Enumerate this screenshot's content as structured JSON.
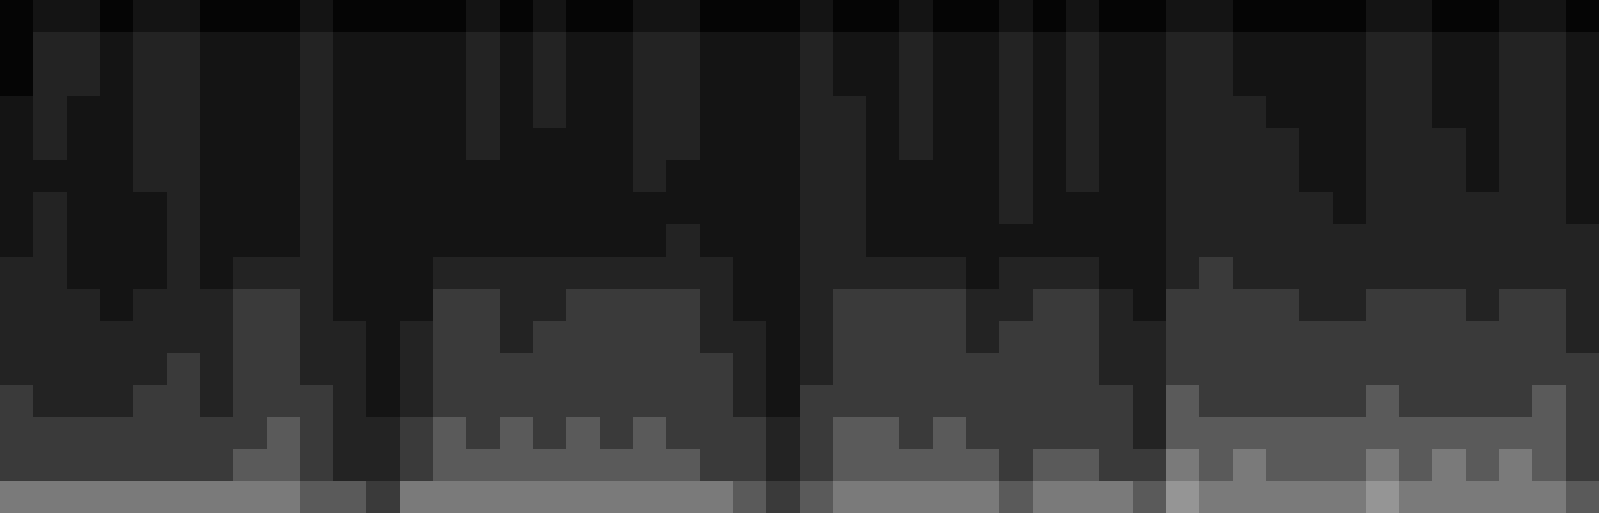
{
  "chart_data": {
    "type": "heatmap",
    "tick_labels": false,
    "xlim": [
      -0.5,
      47.5
    ],
    "ylim": [
      15.5,
      -0.5
    ],
    "zlim": [
      0,
      10
    ],
    "z": [
      [
        0,
        1,
        1,
        0,
        1,
        1,
        0,
        0,
        0,
        1,
        0,
        0,
        0,
        0,
        1,
        0,
        1,
        0,
        0,
        1,
        1,
        0,
        0,
        0,
        1,
        0,
        0,
        1,
        0,
        0,
        1,
        0,
        1,
        0,
        0,
        1,
        1,
        0,
        0,
        0,
        0,
        1,
        1,
        0,
        0,
        1,
        1,
        0
      ],
      [
        0,
        2,
        2,
        1,
        2,
        2,
        1,
        1,
        1,
        2,
        1,
        1,
        1,
        1,
        2,
        1,
        2,
        1,
        1,
        2,
        2,
        1,
        1,
        1,
        2,
        1,
        1,
        2,
        1,
        1,
        2,
        1,
        2,
        1,
        1,
        2,
        2,
        1,
        1,
        1,
        1,
        2,
        2,
        1,
        1,
        2,
        2,
        1
      ],
      [
        0,
        2,
        2,
        1,
        2,
        2,
        1,
        1,
        1,
        2,
        1,
        1,
        1,
        1,
        2,
        1,
        2,
        1,
        1,
        2,
        2,
        1,
        1,
        1,
        2,
        1,
        1,
        2,
        1,
        1,
        2,
        1,
        2,
        1,
        1,
        2,
        2,
        1,
        1,
        1,
        1,
        2,
        2,
        1,
        1,
        2,
        2,
        1
      ],
      [
        1,
        2,
        1,
        1,
        2,
        2,
        1,
        1,
        1,
        2,
        1,
        1,
        1,
        1,
        2,
        1,
        2,
        1,
        1,
        2,
        2,
        1,
        1,
        1,
        2,
        2,
        1,
        2,
        1,
        1,
        2,
        1,
        2,
        1,
        1,
        2,
        2,
        2,
        1,
        1,
        1,
        2,
        2,
        1,
        1,
        2,
        2,
        1
      ],
      [
        1,
        2,
        1,
        1,
        2,
        2,
        1,
        1,
        1,
        2,
        1,
        1,
        1,
        1,
        2,
        1,
        1,
        1,
        1,
        2,
        2,
        1,
        1,
        1,
        2,
        2,
        1,
        2,
        1,
        1,
        2,
        1,
        2,
        1,
        1,
        2,
        2,
        2,
        2,
        1,
        1,
        2,
        2,
        2,
        1,
        2,
        2,
        1
      ],
      [
        1,
        1,
        1,
        1,
        2,
        2,
        1,
        1,
        1,
        2,
        1,
        1,
        1,
        1,
        1,
        1,
        1,
        1,
        1,
        2,
        1,
        1,
        1,
        1,
        2,
        2,
        1,
        1,
        1,
        1,
        2,
        1,
        2,
        1,
        1,
        2,
        2,
        2,
        2,
        1,
        1,
        2,
        2,
        2,
        1,
        2,
        2,
        1
      ],
      [
        1,
        2,
        1,
        1,
        1,
        2,
        1,
        1,
        1,
        2,
        1,
        1,
        1,
        1,
        1,
        1,
        1,
        1,
        1,
        1,
        1,
        1,
        1,
        1,
        2,
        2,
        1,
        1,
        1,
        1,
        2,
        1,
        1,
        1,
        1,
        2,
        2,
        2,
        2,
        2,
        1,
        2,
        2,
        2,
        2,
        2,
        2,
        1
      ],
      [
        1,
        2,
        1,
        1,
        1,
        2,
        1,
        1,
        1,
        2,
        1,
        1,
        1,
        1,
        1,
        1,
        1,
        1,
        1,
        1,
        2,
        1,
        1,
        1,
        2,
        2,
        1,
        1,
        1,
        1,
        1,
        1,
        1,
        1,
        1,
        2,
        2,
        2,
        2,
        2,
        2,
        2,
        2,
        2,
        2,
        2,
        2,
        2
      ],
      [
        2,
        2,
        1,
        1,
        1,
        2,
        1,
        2,
        2,
        2,
        1,
        1,
        1,
        2,
        2,
        2,
        2,
        2,
        2,
        2,
        2,
        2,
        1,
        1,
        2,
        2,
        2,
        2,
        2,
        1,
        2,
        2,
        2,
        1,
        1,
        2,
        3,
        2,
        2,
        2,
        2,
        2,
        2,
        2,
        2,
        2,
        2,
        2
      ],
      [
        2,
        2,
        2,
        1,
        2,
        2,
        2,
        3,
        3,
        2,
        1,
        1,
        1,
        3,
        3,
        2,
        2,
        3,
        3,
        3,
        3,
        2,
        1,
        1,
        2,
        3,
        3,
        3,
        3,
        2,
        2,
        3,
        3,
        2,
        1,
        3,
        3,
        3,
        3,
        2,
        2,
        3,
        3,
        3,
        2,
        3,
        3,
        2
      ],
      [
        2,
        2,
        2,
        2,
        2,
        2,
        2,
        3,
        3,
        2,
        2,
        1,
        2,
        3,
        3,
        2,
        3,
        3,
        3,
        3,
        3,
        2,
        2,
        1,
        2,
        3,
        3,
        3,
        3,
        2,
        3,
        3,
        3,
        2,
        2,
        3,
        3,
        3,
        3,
        3,
        3,
        3,
        3,
        3,
        3,
        3,
        3,
        2
      ],
      [
        2,
        2,
        2,
        2,
        2,
        3,
        2,
        3,
        3,
        2,
        2,
        1,
        2,
        3,
        3,
        3,
        3,
        3,
        3,
        3,
        3,
        3,
        2,
        1,
        2,
        3,
        3,
        3,
        3,
        3,
        3,
        3,
        3,
        2,
        2,
        3,
        3,
        3,
        3,
        3,
        3,
        3,
        3,
        3,
        3,
        3,
        3,
        3
      ],
      [
        3,
        2,
        2,
        2,
        3,
        3,
        2,
        3,
        3,
        3,
        2,
        1,
        2,
        3,
        3,
        3,
        3,
        3,
        3,
        3,
        3,
        3,
        2,
        1,
        3,
        3,
        3,
        3,
        3,
        3,
        3,
        3,
        3,
        3,
        2,
        4,
        3,
        3,
        3,
        3,
        3,
        4,
        3,
        3,
        3,
        3,
        4,
        3
      ],
      [
        3,
        3,
        3,
        3,
        3,
        3,
        3,
        3,
        4,
        3,
        2,
        2,
        3,
        4,
        3,
        4,
        3,
        4,
        3,
        4,
        3,
        3,
        3,
        2,
        3,
        4,
        4,
        3,
        4,
        3,
        3,
        3,
        3,
        3,
        2,
        4,
        4,
        4,
        4,
        4,
        4,
        4,
        4,
        4,
        4,
        4,
        4,
        3
      ],
      [
        3,
        3,
        3,
        3,
        3,
        3,
        3,
        4,
        4,
        3,
        2,
        2,
        3,
        4,
        4,
        4,
        4,
        4,
        4,
        4,
        4,
        3,
        3,
        2,
        3,
        4,
        4,
        4,
        4,
        4,
        3,
        4,
        4,
        3,
        3,
        5,
        4,
        5,
        4,
        4,
        4,
        5,
        4,
        5,
        4,
        5,
        4,
        3
      ],
      [
        5,
        5,
        5,
        5,
        5,
        5,
        5,
        5,
        5,
        4,
        4,
        3,
        5,
        5,
        5,
        5,
        5,
        5,
        5,
        5,
        5,
        5,
        4,
        3,
        4,
        5,
        5,
        5,
        5,
        5,
        4,
        5,
        5,
        5,
        4,
        6,
        5,
        5,
        5,
        5,
        5,
        6,
        5,
        5,
        5,
        5,
        5,
        4
      ]
    ]
  }
}
